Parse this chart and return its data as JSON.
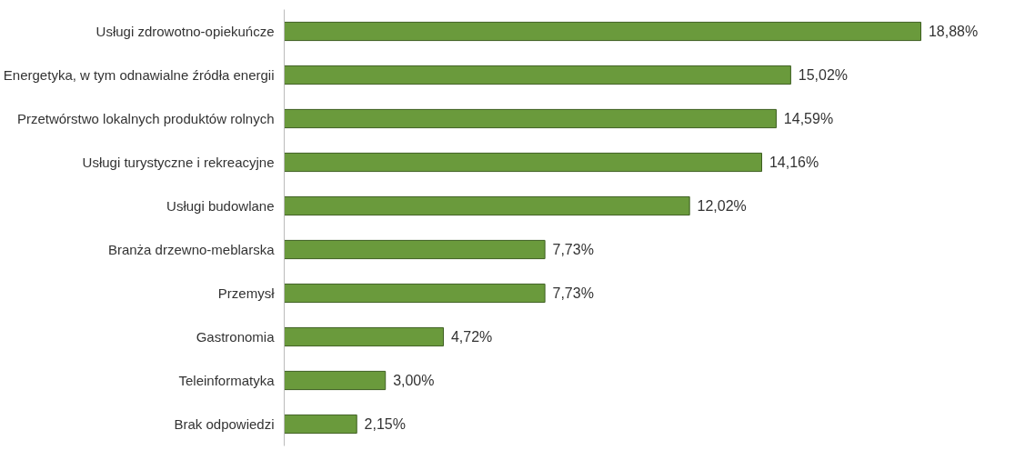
{
  "chart_data": {
    "type": "bar",
    "orientation": "horizontal",
    "categories": [
      "Usługi zdrowotno-opiekuńcze",
      "Energetyka, w tym odnawialne źródła energii",
      "Przetwórstwo lokalnych produktów rolnych",
      "Usługi turystyczne i rekreacyjne",
      "Usługi budowlane",
      "Branża drzewno-meblarska",
      "Przemysł",
      "Gastronomia",
      "Teleinformatyka",
      "Brak odpowiedzi"
    ],
    "values": [
      18.88,
      15.02,
      14.59,
      14.16,
      12.02,
      7.73,
      7.73,
      4.72,
      3.0,
      2.15
    ],
    "value_labels": [
      "18,88%",
      "15,02%",
      "14,59%",
      "14,16%",
      "12,02%",
      "7,73%",
      "7,73%",
      "4,72%",
      "3,00%",
      "2,15%"
    ],
    "color": "#6a9a3c",
    "grid": false
  }
}
